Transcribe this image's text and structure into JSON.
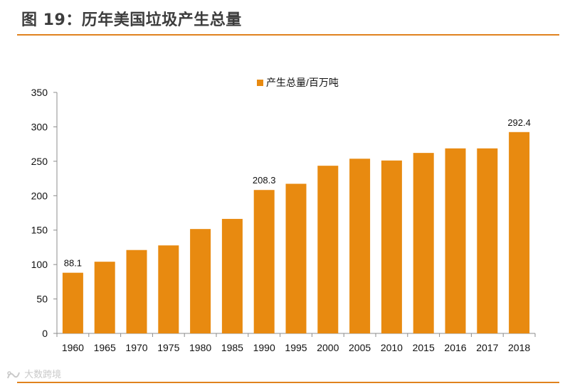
{
  "header": {
    "title": "图 19：历年美国垃圾产生总量"
  },
  "watermark": {
    "text": "大数跨境"
  },
  "colors": {
    "bar": "#E88A10",
    "rule": "#E0821E",
    "axis": "#8C8C8C"
  },
  "chart_data": {
    "type": "bar",
    "title": "",
    "xlabel": "",
    "ylabel": "",
    "ylim": [
      0,
      350
    ],
    "yticks": [
      0,
      50,
      100,
      150,
      200,
      250,
      300,
      350
    ],
    "grid": false,
    "legend_position": "top-center",
    "categories": [
      "1960",
      "1965",
      "1970",
      "1975",
      "1980",
      "1985",
      "1990",
      "1995",
      "2000",
      "2005",
      "2010",
      "2015",
      "2016",
      "2017",
      "2018"
    ],
    "series": [
      {
        "name": "产生总量/百万吨",
        "values": [
          88.1,
          104.1,
          121.1,
          127.8,
          151.6,
          166.3,
          208.3,
          217.3,
          243.5,
          253.7,
          251.1,
          262.1,
          268.7,
          268.7,
          292.4
        ]
      }
    ],
    "data_labels": [
      {
        "index": 0,
        "text": "88.1"
      },
      {
        "index": 6,
        "text": "208.3"
      },
      {
        "index": 14,
        "text": "292.4"
      }
    ]
  }
}
